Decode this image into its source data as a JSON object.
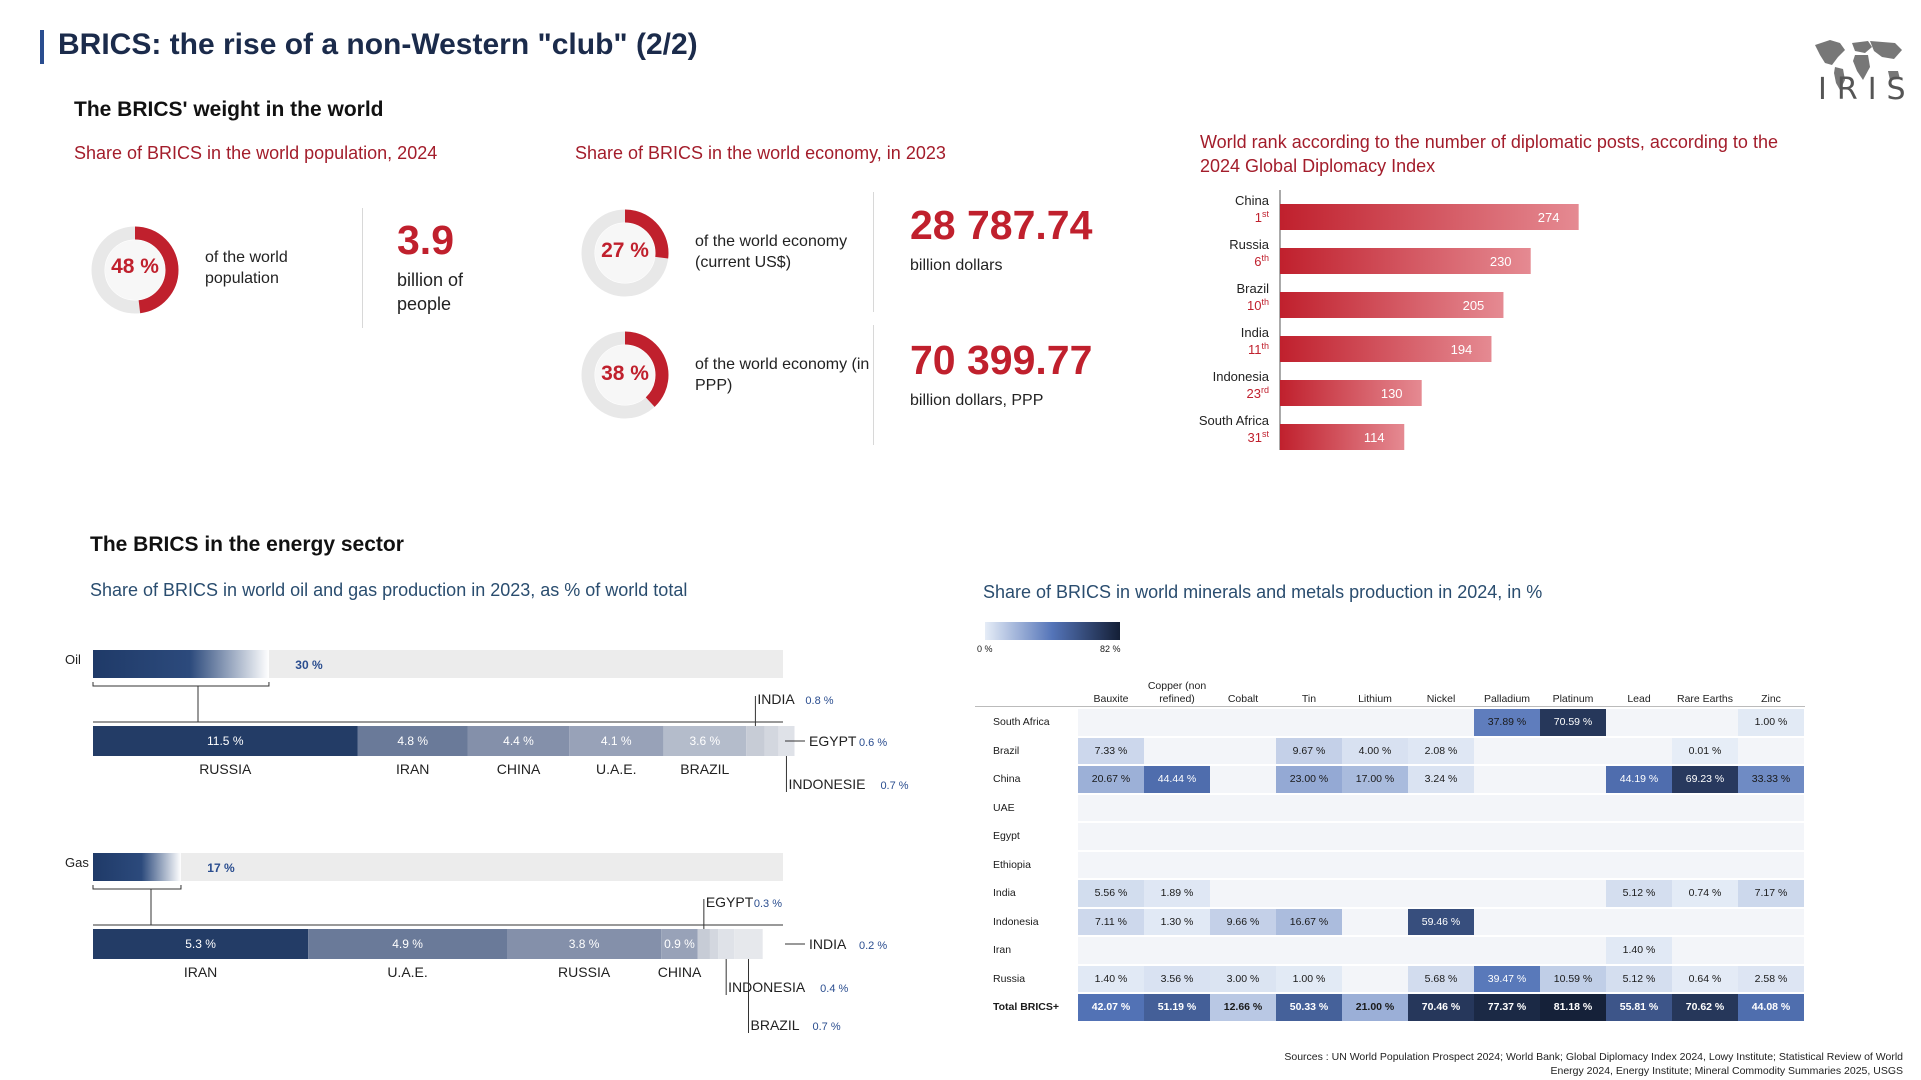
{
  "title": "BRICS: the rise of a non-Western \"club\" (2/2)",
  "logo": {
    "text": "IRIS"
  },
  "world_section": {
    "title": "The BRICS' weight in the world",
    "population": {
      "subtitle": "Share of BRICS in the world population, 2024",
      "percent_label": "48 %",
      "percent_value": 48,
      "desc": "of the world population",
      "big_number": "3.9",
      "big_unit": "billion of people"
    },
    "economy": {
      "subtitle": "Share of BRICS in the world economy, in 2023",
      "current": {
        "percent_label": "27 %",
        "percent_value": 27,
        "desc": "of the world economy (current US$)",
        "big_number": "28 787.74",
        "big_unit": "billion dollars"
      },
      "ppp": {
        "percent_label": "38 %",
        "percent_value": 38,
        "desc": "of the world economy (in PPP)",
        "big_number": "70 399.77",
        "big_unit": "billion dollars, PPP"
      }
    }
  },
  "colors": {
    "red": "#c0202d",
    "navy": "#1f3a68",
    "grey": "#ececec"
  },
  "chart_data": [
    {
      "type": "bar",
      "title": "World rank according to the number of diplomatic posts, according to the 2024 Global Diplomacy Index",
      "categories": [
        "China",
        "Russia",
        "Brazil",
        "India",
        "Indonesia",
        "South Africa"
      ],
      "ranks": [
        "1",
        "6",
        "10",
        "11",
        "23",
        "31"
      ],
      "rank_suffix": [
        "st",
        "th",
        "th",
        "th",
        "rd",
        "st"
      ],
      "values": [
        274,
        230,
        205,
        194,
        130,
        114
      ]
    },
    {
      "type": "bar",
      "title": "Share of BRICS in world oil and gas production in 2023, as % of world total",
      "oil": {
        "label": "Oil",
        "total_label": "30 %",
        "total": 30,
        "segments": [
          {
            "name": "RUSSIA",
            "value": 11.5,
            "label": "11.5 %"
          },
          {
            "name": "IRAN",
            "value": 4.8,
            "label": "4.8 %"
          },
          {
            "name": "CHINA",
            "value": 4.4,
            "label": "4.4 %"
          },
          {
            "name": "U.A.E.",
            "value": 4.1,
            "label": "4.1 %"
          },
          {
            "name": "BRAZIL",
            "value": 3.6,
            "label": "3.6 %"
          }
        ],
        "small": [
          {
            "name": "INDIA",
            "label": "0.8 %",
            "value": 0.8
          },
          {
            "name": "EGYPT",
            "label": "0.6 %",
            "value": 0.6
          },
          {
            "name": "INDONESIE",
            "label": "0.7 %",
            "value": 0.7
          }
        ]
      },
      "gas": {
        "label": "Gas",
        "total_label": "17 %",
        "total": 17,
        "segments": [
          {
            "name": "IRAN",
            "value": 5.3,
            "label": "5.3 %"
          },
          {
            "name": "U.A.E.",
            "value": 4.9,
            "label": "4.9 %"
          },
          {
            "name": "RUSSIA",
            "value": 3.8,
            "label": "3.8 %"
          },
          {
            "name": "CHINA",
            "value": 0.9,
            "label": "0.9 %"
          }
        ],
        "small": [
          {
            "name": "EGYPT",
            "label": "0.3 %",
            "value": 0.3
          },
          {
            "name": "INDIA",
            "label": "0.2 %",
            "value": 0.2
          },
          {
            "name": "INDONESIA",
            "label": "0.4 %",
            "value": 0.4
          },
          {
            "name": "BRAZIL",
            "label": "0.7 %",
            "value": 0.7
          }
        ]
      }
    },
    {
      "type": "heatmap",
      "title": "Share of BRICS in world minerals and metals production in 2024, in %",
      "scale_min_label": "0 %",
      "scale_max_label": "82 %",
      "columns": [
        "Bauxite",
        "Copper (non refined)",
        "Cobalt",
        "Tin",
        "Lithium",
        "Nickel",
        "Palladium",
        "Platinum",
        "Lead",
        "Rare Earths",
        "Zinc"
      ],
      "rows": [
        {
          "name": "South Africa",
          "values": [
            null,
            null,
            null,
            null,
            null,
            null,
            37.89,
            70.59,
            null,
            null,
            1.0
          ]
        },
        {
          "name": "Brazil",
          "values": [
            7.33,
            null,
            null,
            9.67,
            4.0,
            2.08,
            null,
            null,
            null,
            0.01,
            null
          ]
        },
        {
          "name": "China",
          "values": [
            20.67,
            44.44,
            null,
            23.0,
            17.0,
            3.24,
            null,
            null,
            44.19,
            69.23,
            33.33
          ]
        },
        {
          "name": "UAE",
          "values": [
            null,
            null,
            null,
            null,
            null,
            null,
            null,
            null,
            null,
            null,
            null
          ]
        },
        {
          "name": "Egypt",
          "values": [
            null,
            null,
            null,
            null,
            null,
            null,
            null,
            null,
            null,
            null,
            null
          ]
        },
        {
          "name": "Ethiopia",
          "values": [
            null,
            null,
            null,
            null,
            null,
            null,
            null,
            null,
            null,
            null,
            null
          ]
        },
        {
          "name": "India",
          "values": [
            5.56,
            1.89,
            null,
            null,
            null,
            null,
            null,
            null,
            5.12,
            0.74,
            7.17
          ]
        },
        {
          "name": "Indonesia",
          "values": [
            7.11,
            1.3,
            9.66,
            16.67,
            null,
            59.46,
            null,
            null,
            null,
            null,
            null
          ]
        },
        {
          "name": "Iran",
          "values": [
            null,
            null,
            null,
            null,
            null,
            null,
            null,
            null,
            1.4,
            null,
            null
          ]
        },
        {
          "name": "Russia",
          "values": [
            1.4,
            3.56,
            3.0,
            1.0,
            null,
            5.68,
            39.47,
            10.59,
            5.12,
            0.64,
            2.58
          ]
        },
        {
          "name": "Total BRICS+",
          "values": [
            42.07,
            51.19,
            12.66,
            50.33,
            21.0,
            70.46,
            77.37,
            81.18,
            55.81,
            70.62,
            44.08
          ]
        }
      ]
    }
  ],
  "energy_section": {
    "title": "The BRICS in the energy sector"
  },
  "sources": "Sources : UN World Population Prospect 2024; World Bank; Global Diplomacy Index 2024, Lowy Institute; Statistical Review of World Energy 2024, Energy Institute; Mineral Commodity Summaries 2025, USGS"
}
